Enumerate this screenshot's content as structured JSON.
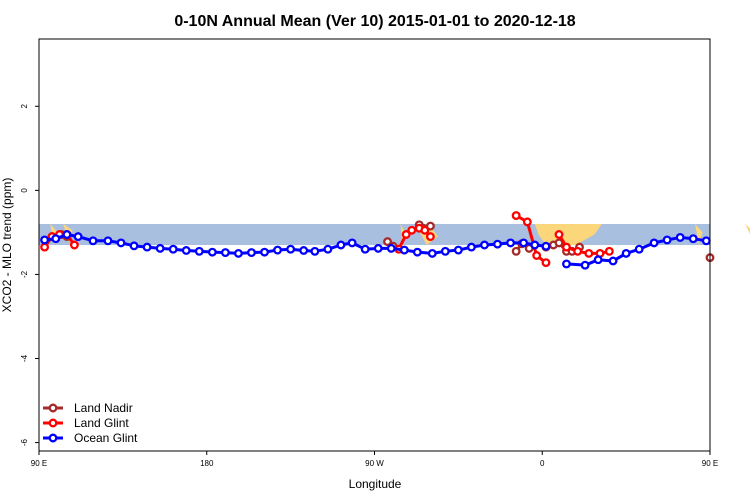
{
  "chart_data": {
    "type": "line",
    "title": "0-10N Annual Mean (Ver 10)   2015-01-01 to 2020-12-18",
    "xlabel": "Longitude",
    "ylabel": "XCO2 - MLO trend (ppm)",
    "xlim": [
      90,
      450
    ],
    "ylim": [
      -6.2,
      3.6
    ],
    "x_ticks": [
      {
        "value": 90,
        "label": "90 E"
      },
      {
        "value": 180,
        "label": "180"
      },
      {
        "value": 270,
        "label": "90 W"
      },
      {
        "value": 360,
        "label": "0"
      },
      {
        "value": 450,
        "label": "90 E"
      },
      {
        "value": 540,
        "label": "180"
      }
    ],
    "y_ticks": [
      {
        "value": 2,
        "label": "2"
      },
      {
        "value": 0,
        "label": "0"
      },
      {
        "value": -2,
        "label": "-2"
      },
      {
        "value": -4,
        "label": "-4"
      },
      {
        "value": -6,
        "label": "-6"
      }
    ],
    "latitude_band": {
      "y_top": -0.8,
      "y_bottom": -1.3,
      "color": "#a8bfe0",
      "land_color": "#fcd67a"
    },
    "legend_position": "bottom-left",
    "series": [
      {
        "name": "Land Nadir",
        "color": "#a52a2a",
        "segments": [
          [
            [
              97,
              -1.1
            ],
            [
              102,
              -1.05
            ],
            [
              105,
              -1.1
            ]
          ],
          [
            [
              277,
              -1.22
            ],
            [
              280,
              -1.33
            ]
          ],
          [
            [
              294,
              -0.82
            ],
            [
              296,
              -0.9
            ],
            [
              300,
              -0.85
            ]
          ],
          [
            [
              346,
              -1.45
            ],
            [
              349,
              -1.27
            ],
            [
              353,
              -1.38
            ]
          ],
          [
            [
              362,
              -1.35
            ],
            [
              366,
              -1.3
            ],
            [
              369,
              -1.25
            ],
            [
              373,
              -1.45
            ],
            [
              376,
              -1.45
            ],
            [
              380,
              -1.35
            ]
          ],
          [
            [
              450,
              -1.6
            ],
            [
              456,
              -1.4
            ],
            [
              462,
              -1.25
            ]
          ],
          [
            [
              486,
              -1.1
            ],
            [
              493,
              -1.07
            ]
          ]
        ]
      },
      {
        "name": "Land Glint",
        "color": "#ff0000",
        "segments": [
          [
            [
              93,
              -1.35
            ],
            [
              97,
              -1.1
            ],
            [
              101,
              -1.05
            ],
            [
              105,
              -1.05
            ],
            [
              109,
              -1.3
            ]
          ],
          [
            [
              283,
              -1.4
            ],
            [
              287,
              -1.05
            ],
            [
              290,
              -0.95
            ],
            [
              294,
              -0.9
            ],
            [
              297,
              -0.95
            ],
            [
              300,
              -1.1
            ]
          ],
          [
            [
              346,
              -0.6
            ],
            [
              352,
              -0.75
            ],
            [
              357,
              -1.55
            ],
            [
              362,
              -1.72
            ]
          ],
          [
            [
              369,
              -1.05
            ],
            [
              373,
              -1.35
            ],
            [
              379,
              -1.45
            ],
            [
              385,
              -1.5
            ],
            [
              391,
              -1.5
            ],
            [
              396,
              -1.45
            ]
          ],
          [
            [
              453,
              -1.2
            ],
            [
              457,
              -0.97
            ]
          ],
          [
            [
              476,
              -1.3
            ],
            [
              480,
              -1.03
            ],
            [
              486,
              -1.1
            ],
            [
              493,
              -1.1
            ],
            [
              496,
              -1.25
            ]
          ]
        ]
      },
      {
        "name": "Ocean Glint",
        "color": "#0000ff",
        "segments": [
          [
            [
              93,
              -1.18
            ],
            [
              99,
              -1.15
            ],
            [
              105,
              -1.05
            ],
            [
              111,
              -1.1
            ],
            [
              119,
              -1.2
            ],
            [
              127,
              -1.2
            ],
            [
              134,
              -1.25
            ],
            [
              141,
              -1.32
            ],
            [
              148,
              -1.35
            ],
            [
              155,
              -1.38
            ],
            [
              162,
              -1.4
            ],
            [
              169,
              -1.43
            ],
            [
              176,
              -1.45
            ],
            [
              183,
              -1.47
            ],
            [
              190,
              -1.48
            ],
            [
              197,
              -1.5
            ],
            [
              204,
              -1.48
            ],
            [
              211,
              -1.47
            ],
            [
              218,
              -1.42
            ],
            [
              225,
              -1.4
            ],
            [
              232,
              -1.43
            ],
            [
              238,
              -1.45
            ],
            [
              245,
              -1.4
            ],
            [
              252,
              -1.3
            ],
            [
              258,
              -1.25
            ],
            [
              265,
              -1.4
            ],
            [
              272,
              -1.38
            ],
            [
              279,
              -1.38
            ],
            [
              286,
              -1.42
            ],
            [
              293,
              -1.47
            ],
            [
              301,
              -1.5
            ],
            [
              308,
              -1.45
            ],
            [
              315,
              -1.42
            ],
            [
              322,
              -1.35
            ],
            [
              329,
              -1.3
            ],
            [
              336,
              -1.28
            ],
            [
              343,
              -1.25
            ],
            [
              350,
              -1.25
            ],
            [
              356,
              -1.3
            ],
            [
              362,
              -1.33
            ]
          ],
          [
            [
              373,
              -1.75
            ],
            [
              383,
              -1.78
            ],
            [
              390,
              -1.65
            ],
            [
              398,
              -1.68
            ],
            [
              405,
              -1.5
            ],
            [
              412,
              -1.4
            ],
            [
              420,
              -1.25
            ],
            [
              427,
              -1.18
            ],
            [
              434,
              -1.12
            ],
            [
              441,
              -1.15
            ],
            [
              448,
              -1.2
            ],
            [
              455,
              -1.2
            ],
            [
              462,
              -1.22
            ],
            [
              470,
              -1.22
            ],
            [
              478,
              -1.25
            ],
            [
              486,
              -1.27
            ],
            [
              493,
              -1.33
            ]
          ]
        ]
      }
    ]
  }
}
